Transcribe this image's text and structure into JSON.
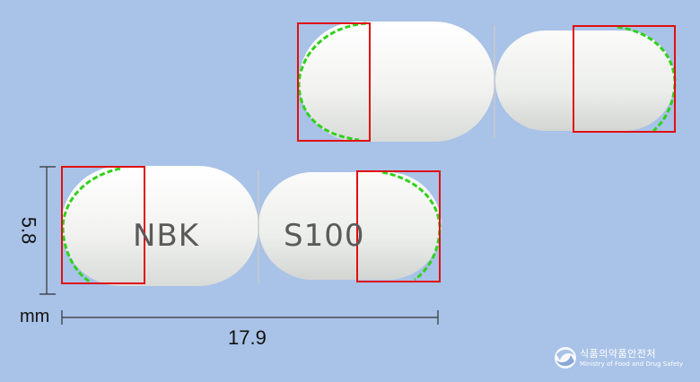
{
  "capsule_front": {
    "imprint_left": "NBK",
    "imprint_right": "S100"
  },
  "dimensions": {
    "height_value": "5.8",
    "unit": "mm",
    "length_value": "17.9"
  },
  "watermark": {
    "korean": "식품의약품안전처",
    "english": "Ministry of Food and Drug Safety"
  },
  "colors": {
    "background": "#a9c2e7",
    "capsule": "#f3f4f2",
    "box": "#e01010",
    "contour": "#2fd11a"
  }
}
